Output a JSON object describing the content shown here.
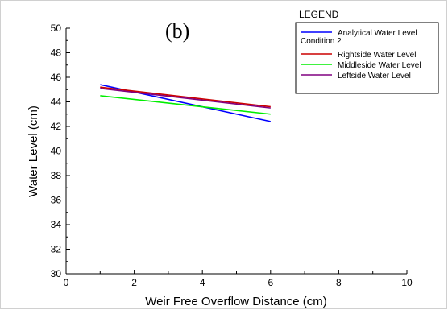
{
  "chart_data": {
    "type": "line",
    "panel_label": "(b)",
    "xlabel": "Weir Free Overflow Distance (cm)",
    "ylabel": "Water Level (cm)",
    "xlim": [
      0,
      10
    ],
    "ylim": [
      30,
      50
    ],
    "xticks": [
      0,
      2,
      4,
      6,
      8,
      10
    ],
    "yticks": [
      30,
      32,
      34,
      36,
      38,
      40,
      42,
      44,
      46,
      48,
      50
    ],
    "grid": false,
    "legend": {
      "title": "LEGEND",
      "group_label": "Condition 2",
      "placement": "top-right"
    },
    "series": [
      {
        "name": "Analytical Water Level",
        "color": "#0000ff",
        "x": [
          1,
          6
        ],
        "y": [
          45.4,
          42.4
        ]
      },
      {
        "name": "Rightside Water Level",
        "color": "#cc0000",
        "x": [
          1,
          6
        ],
        "y": [
          45.2,
          43.6
        ]
      },
      {
        "name": "Middleside Water Level",
        "color": "#00ee00",
        "x": [
          1,
          6
        ],
        "y": [
          44.5,
          43.0
        ]
      },
      {
        "name": "Leftside Water Level",
        "color": "#800080",
        "x": [
          1,
          6
        ],
        "y": [
          45.1,
          43.5
        ]
      }
    ]
  }
}
